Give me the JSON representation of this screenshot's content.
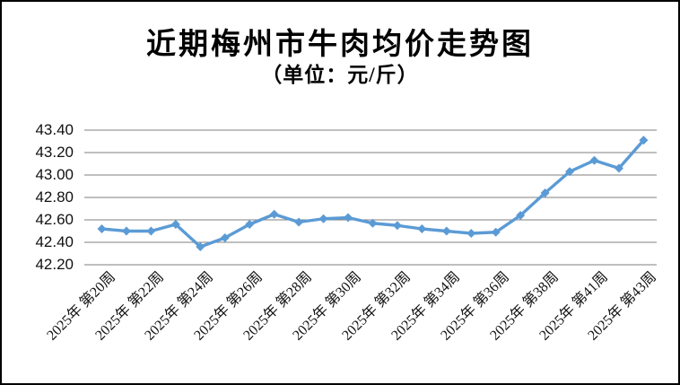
{
  "chart_data": {
    "type": "line",
    "title": "近期梅州市牛肉均价走势图",
    "subtitle": "（单位：元/斤）",
    "ylabel": "",
    "xlabel": "",
    "ylim": [
      42.2,
      43.4
    ],
    "y_tick_step": 0.2,
    "y_ticks": [
      "43.40",
      "43.20",
      "43.00",
      "42.80",
      "42.60",
      "42.40",
      "42.20"
    ],
    "grid": "horizontal",
    "legend": "none",
    "marker": "diamond",
    "n_points": 23,
    "values": [
      42.52,
      42.5,
      42.5,
      42.56,
      42.36,
      42.44,
      42.56,
      42.65,
      42.58,
      42.61,
      42.62,
      42.57,
      42.55,
      42.52,
      42.5,
      42.48,
      42.49,
      42.64,
      42.84,
      43.03,
      43.13,
      43.06,
      43.31
    ],
    "x_tick_positions": [
      0,
      2,
      4,
      6,
      8,
      10,
      12,
      14,
      16,
      18,
      20,
      22
    ],
    "x_tick_labels": [
      "2025年 第20周",
      "2025年 第22周",
      "2025年 第24周",
      "2025年 第26周",
      "2025年 第28周",
      "2025年 第30周",
      "2025年 第32周",
      "2025年 第34周",
      "2025年 第36周",
      "2025年 第38周",
      "2025年 第41周",
      "2025年 第43周"
    ],
    "line_color": "#5B9BD5",
    "grid_color": "#7F7F7F",
    "text_color": "#000000",
    "background_color": "#FFFFFF",
    "border_color": "#000000"
  }
}
